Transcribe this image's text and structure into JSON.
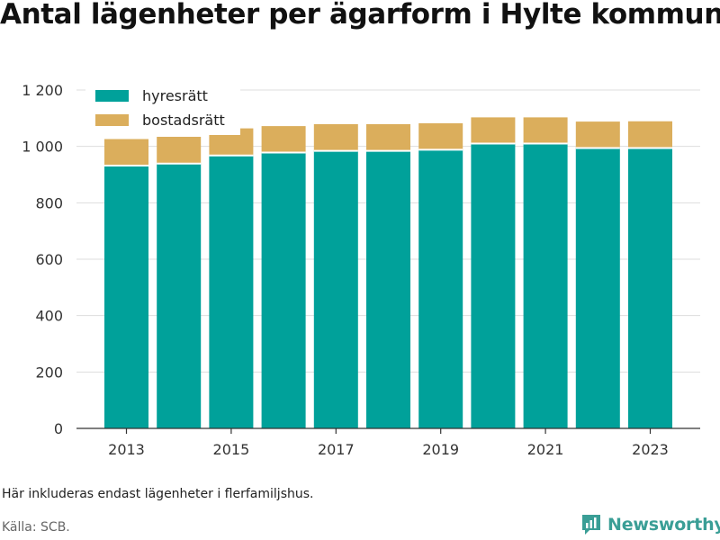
{
  "title": "Antal lägenheter per ägarform i Hylte kommun",
  "note": "Här inkluderas endast lägenheter i flerfamiljshus.",
  "source": "Källa: SCB.",
  "brand": "Newsworthy",
  "colors": {
    "hyresratt": "#00a19a",
    "bostadsratt": "#dbae5c",
    "brand": "#3a9e96",
    "grid": "#dddddd",
    "axis": "#333333"
  },
  "chart_data": {
    "type": "bar",
    "stacked": true,
    "categories": [
      "2013",
      "2014",
      "2015",
      "2016",
      "2017",
      "2018",
      "2019",
      "2020",
      "2021",
      "2022",
      "2023"
    ],
    "x_tick_labels": [
      "2013",
      "2015",
      "2017",
      "2019",
      "2021",
      "2023"
    ],
    "series": [
      {
        "name": "hyresrätt",
        "color": "#00a19a",
        "values": [
          932,
          939,
          968,
          978,
          984,
          984,
          988,
          1010,
          1010,
          994,
          994
        ]
      },
      {
        "name": "bostadsrätt",
        "color": "#dbae5c",
        "values": [
          94,
          95,
          96,
          94,
          95,
          95,
          94,
          93,
          93,
          94,
          95
        ]
      }
    ],
    "ylim": [
      0,
      1200
    ],
    "y_ticks": [
      0,
      200,
      400,
      600,
      800,
      1000,
      1200
    ],
    "y_tick_labels": [
      "0",
      "200",
      "400",
      "600",
      "800",
      "1 000",
      "1 200"
    ],
    "grid": true,
    "legend_position": "top-left"
  }
}
